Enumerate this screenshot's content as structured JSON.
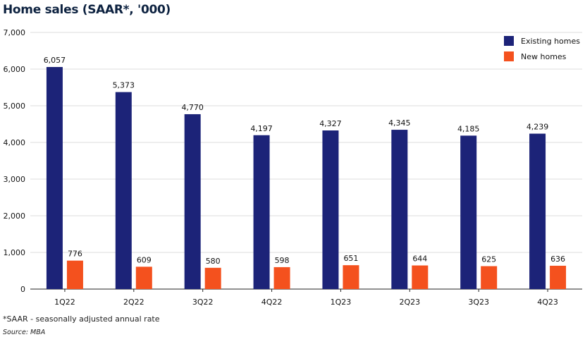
{
  "title": "Home sales (SAAR*, '000)",
  "footnote": "*SAAR - seasonally adjusted annual rate",
  "source": "Source: MBA",
  "chart_data": {
    "type": "bar",
    "title": "Home sales (SAAR*, '000)",
    "categories": [
      "1Q22",
      "2Q22",
      "3Q22",
      "4Q22",
      "1Q23",
      "2Q23",
      "3Q23",
      "4Q23"
    ],
    "series": [
      {
        "name": "Existing homes",
        "color": "#1c2378",
        "values": [
          6057,
          5373,
          4770,
          4197,
          4327,
          4345,
          4185,
          4239
        ],
        "labels": [
          "6,057",
          "5,373",
          "4,770",
          "4,197",
          "4,327",
          "4,345",
          "4,185",
          "4,239"
        ]
      },
      {
        "name": "New homes",
        "color": "#f4511e",
        "values": [
          776,
          609,
          580,
          598,
          651,
          644,
          625,
          636
        ],
        "labels": [
          "776",
          "609",
          "580",
          "598",
          "651",
          "644",
          "625",
          "636"
        ]
      }
    ],
    "ylim": [
      0,
      7000
    ],
    "yticks": [
      0,
      1000,
      2000,
      3000,
      4000,
      5000,
      6000,
      7000
    ],
    "ytick_labels": [
      "0",
      "1,000",
      "2,000",
      "3,000",
      "4,000",
      "5,000",
      "6,000",
      "7,000"
    ],
    "grid": true,
    "legend_position": "top-right",
    "xlabel": "",
    "ylabel": ""
  }
}
